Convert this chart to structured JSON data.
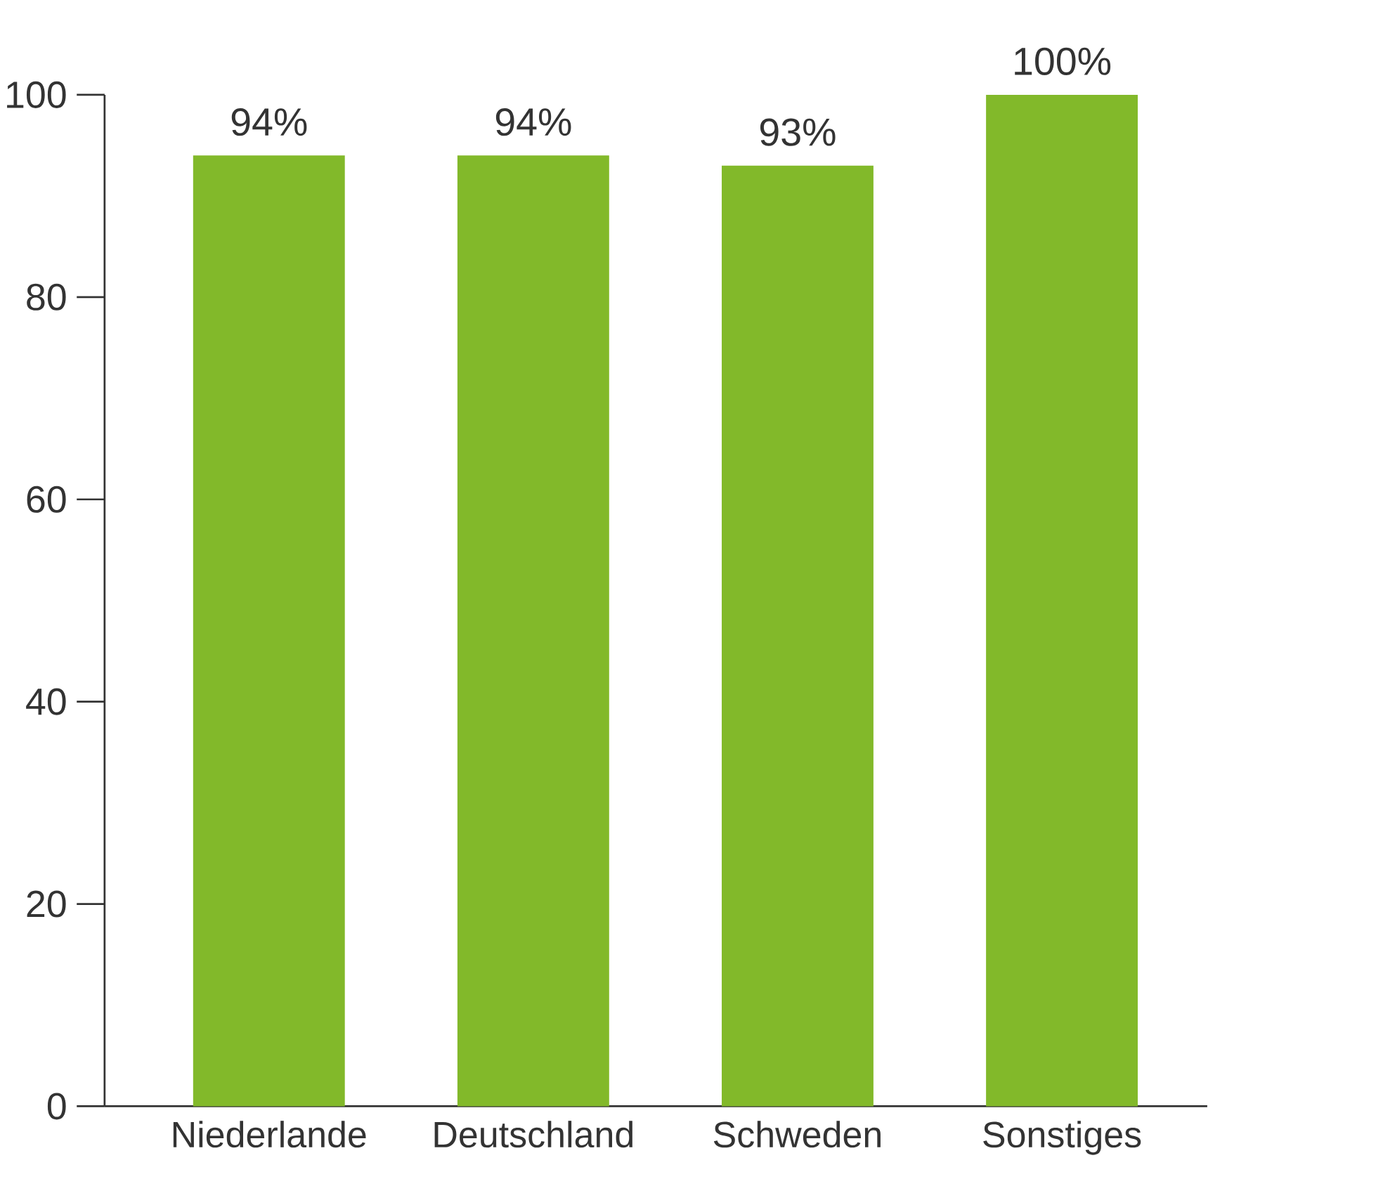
{
  "chart_data": {
    "type": "bar",
    "categories": [
      "Niederlande",
      "Deutschland",
      "Schweden",
      "Sonstiges"
    ],
    "values": [
      94,
      94,
      93,
      100
    ],
    "value_labels": [
      "94%",
      "94%",
      "93%",
      "100%"
    ],
    "color": "#82b92a",
    "ylim": [
      0,
      100
    ],
    "yticks": [
      0,
      20,
      40,
      60,
      80,
      100
    ]
  }
}
